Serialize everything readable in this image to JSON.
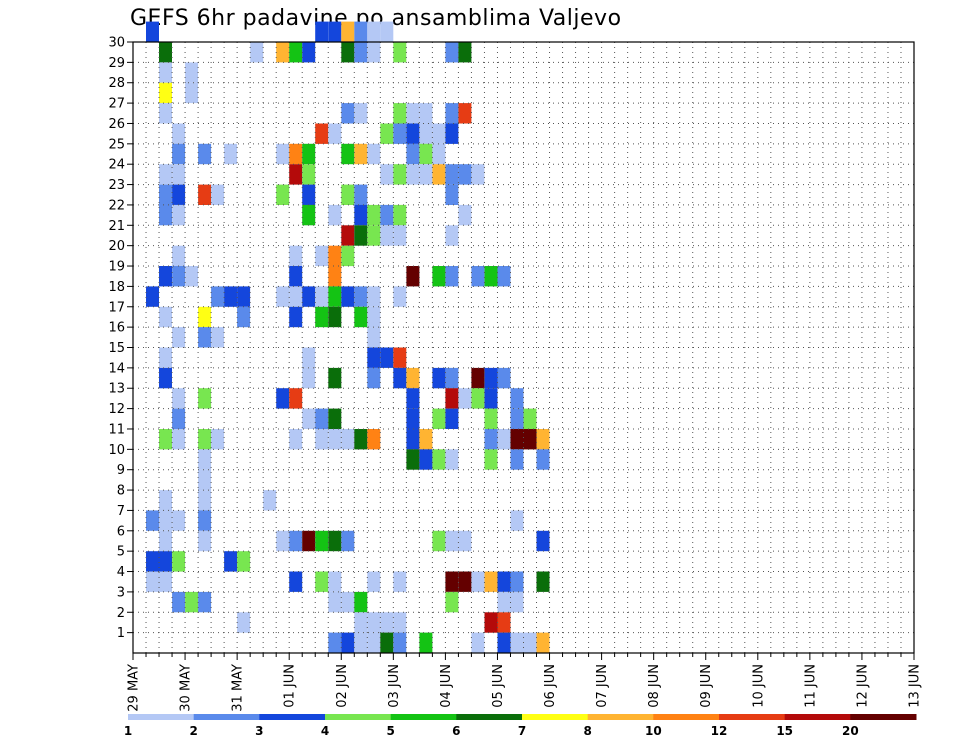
{
  "chart_data": {
    "type": "heatmap",
    "title": "GEFS 6hr padavine po ansamblima Valjevo",
    "xlabel": "",
    "ylabel": "",
    "x_tick_labels": [
      "29 MAY",
      "30 MAY",
      "31 MAY",
      "01 JUN",
      "02 JUN",
      "03 JUN",
      "04 JUN",
      "05 JUN",
      "06 JUN",
      "07 JUN",
      "08 JUN",
      "09 JUN",
      "10 JUN",
      "11 JUN",
      "12 JUN",
      "13 JUN"
    ],
    "y_tick_labels": [
      "1",
      "2",
      "3",
      "4",
      "5",
      "6",
      "7",
      "8",
      "9",
      "10",
      "11",
      "12",
      "13",
      "14",
      "15",
      "16",
      "17",
      "18",
      "19",
      "20",
      "21",
      "22",
      "23",
      "24",
      "25",
      "26",
      "27",
      "28",
      "29",
      "30"
    ],
    "ylim": [
      0,
      30
    ],
    "grid": true,
    "x_step": "6hr",
    "colorbar": {
      "labels": [
        "1",
        "2",
        "3",
        "4",
        "5",
        "6",
        "7",
        "8",
        "10",
        "12",
        "15",
        "20"
      ],
      "colors": [
        "#b4c8f5",
        "#5a8aeb",
        "#1446dc",
        "#78e650",
        "#14c314",
        "#0a6e0a",
        "#ffff14",
        "#ffb432",
        "#ff8214",
        "#e63c14",
        "#b40a0a",
        "#640000"
      ]
    },
    "cells": [
      [
        1,
        30,
        3
      ],
      [
        14,
        30,
        3
      ],
      [
        15,
        30,
        3
      ],
      [
        16,
        30,
        8
      ],
      [
        17,
        30,
        2
      ],
      [
        18,
        30,
        1
      ],
      [
        19,
        30,
        1
      ],
      [
        2,
        29,
        6
      ],
      [
        9,
        29,
        1
      ],
      [
        11,
        29,
        8
      ],
      [
        12,
        29,
        5
      ],
      [
        13,
        29,
        3
      ],
      [
        16,
        29,
        6
      ],
      [
        17,
        29,
        2
      ],
      [
        18,
        29,
        1
      ],
      [
        20,
        29,
        4
      ],
      [
        24,
        29,
        2
      ],
      [
        25,
        29,
        6
      ],
      [
        2,
        28,
        1
      ],
      [
        4,
        28,
        1
      ],
      [
        2,
        27,
        7
      ],
      [
        4,
        27,
        1
      ],
      [
        2,
        26,
        1
      ],
      [
        16,
        26,
        2
      ],
      [
        17,
        26,
        1
      ],
      [
        20,
        26,
        4
      ],
      [
        21,
        26,
        1
      ],
      [
        22,
        26,
        1
      ],
      [
        24,
        26,
        2
      ],
      [
        25,
        26,
        10
      ],
      [
        3,
        25,
        1
      ],
      [
        14,
        25,
        10
      ],
      [
        15,
        25,
        1
      ],
      [
        19,
        25,
        4
      ],
      [
        20,
        25,
        2
      ],
      [
        21,
        25,
        3
      ],
      [
        22,
        25,
        1
      ],
      [
        23,
        25,
        1
      ],
      [
        24,
        25,
        3
      ],
      [
        3,
        24,
        2
      ],
      [
        5,
        24,
        2
      ],
      [
        7,
        24,
        1
      ],
      [
        11,
        24,
        1
      ],
      [
        12,
        24,
        9
      ],
      [
        13,
        24,
        5
      ],
      [
        16,
        24,
        5
      ],
      [
        17,
        24,
        8
      ],
      [
        18,
        24,
        1
      ],
      [
        21,
        24,
        2
      ],
      [
        22,
        24,
        4
      ],
      [
        23,
        24,
        1
      ],
      [
        2,
        23,
        1
      ],
      [
        3,
        23,
        1
      ],
      [
        12,
        23,
        11
      ],
      [
        13,
        23,
        4
      ],
      [
        19,
        23,
        1
      ],
      [
        20,
        23,
        4
      ],
      [
        21,
        23,
        1
      ],
      [
        22,
        23,
        1
      ],
      [
        23,
        23,
        8
      ],
      [
        24,
        23,
        2
      ],
      [
        25,
        23,
        2
      ],
      [
        26,
        23,
        1
      ],
      [
        2,
        22,
        2
      ],
      [
        3,
        22,
        3
      ],
      [
        5,
        22,
        10
      ],
      [
        6,
        22,
        1
      ],
      [
        11,
        22,
        4
      ],
      [
        13,
        22,
        3
      ],
      [
        16,
        22,
        4
      ],
      [
        17,
        22,
        2
      ],
      [
        24,
        22,
        2
      ],
      [
        2,
        21,
        2
      ],
      [
        3,
        21,
        1
      ],
      [
        13,
        21,
        5
      ],
      [
        15,
        21,
        1
      ],
      [
        17,
        21,
        3
      ],
      [
        18,
        21,
        4
      ],
      [
        19,
        21,
        2
      ],
      [
        20,
        21,
        4
      ],
      [
        25,
        21,
        1
      ],
      [
        16,
        20,
        11
      ],
      [
        17,
        20,
        6
      ],
      [
        18,
        20,
        4
      ],
      [
        19,
        20,
        1
      ],
      [
        20,
        20,
        1
      ],
      [
        24,
        20,
        1
      ],
      [
        3,
        19,
        1
      ],
      [
        12,
        19,
        1
      ],
      [
        14,
        19,
        1
      ],
      [
        15,
        19,
        9
      ],
      [
        16,
        19,
        4
      ],
      [
        2,
        18,
        3
      ],
      [
        3,
        18,
        2
      ],
      [
        4,
        18,
        1
      ],
      [
        12,
        18,
        3
      ],
      [
        15,
        18,
        9
      ],
      [
        21,
        18,
        12
      ],
      [
        23,
        18,
        5
      ],
      [
        24,
        18,
        2
      ],
      [
        26,
        18,
        2
      ],
      [
        27,
        18,
        5
      ],
      [
        28,
        18,
        2
      ],
      [
        1,
        17,
        3
      ],
      [
        6,
        17,
        2
      ],
      [
        7,
        17,
        3
      ],
      [
        8,
        17,
        3
      ],
      [
        11,
        17,
        1
      ],
      [
        12,
        17,
        1
      ],
      [
        13,
        17,
        3
      ],
      [
        14,
        17,
        1
      ],
      [
        15,
        17,
        5
      ],
      [
        16,
        17,
        3
      ],
      [
        17,
        17,
        2
      ],
      [
        18,
        17,
        1
      ],
      [
        20,
        17,
        1
      ],
      [
        2,
        16,
        1
      ],
      [
        5,
        16,
        7
      ],
      [
        8,
        16,
        2
      ],
      [
        12,
        16,
        3
      ],
      [
        14,
        16,
        5
      ],
      [
        15,
        16,
        6
      ],
      [
        17,
        16,
        5
      ],
      [
        18,
        16,
        1
      ],
      [
        3,
        15,
        1
      ],
      [
        5,
        15,
        2
      ],
      [
        6,
        15,
        1
      ],
      [
        18,
        15,
        1
      ],
      [
        2,
        14,
        1
      ],
      [
        13,
        14,
        1
      ],
      [
        19,
        14,
        3
      ],
      [
        20,
        14,
        10
      ],
      [
        18,
        14,
        3
      ],
      [
        2,
        13,
        3
      ],
      [
        13,
        13,
        1
      ],
      [
        15,
        13,
        6
      ],
      [
        18,
        13,
        2
      ],
      [
        20,
        13,
        3
      ],
      [
        21,
        13,
        8
      ],
      [
        23,
        13,
        3
      ],
      [
        24,
        13,
        2
      ],
      [
        26,
        13,
        12
      ],
      [
        27,
        13,
        3
      ],
      [
        28,
        13,
        2
      ],
      [
        3,
        12,
        1
      ],
      [
        5,
        12,
        4
      ],
      [
        11,
        12,
        3
      ],
      [
        12,
        12,
        10
      ],
      [
        21,
        12,
        3
      ],
      [
        24,
        12,
        11
      ],
      [
        25,
        12,
        1
      ],
      [
        26,
        12,
        4
      ],
      [
        27,
        12,
        3
      ],
      [
        29,
        12,
        2
      ],
      [
        3,
        11,
        2
      ],
      [
        13,
        11,
        1
      ],
      [
        14,
        11,
        2
      ],
      [
        15,
        11,
        6
      ],
      [
        21,
        11,
        3
      ],
      [
        23,
        11,
        4
      ],
      [
        24,
        11,
        3
      ],
      [
        27,
        11,
        4
      ],
      [
        29,
        11,
        2
      ],
      [
        30,
        11,
        4
      ],
      [
        2,
        10,
        4
      ],
      [
        3,
        10,
        1
      ],
      [
        5,
        10,
        4
      ],
      [
        6,
        10,
        1
      ],
      [
        12,
        10,
        1
      ],
      [
        14,
        10,
        1
      ],
      [
        15,
        10,
        1
      ],
      [
        16,
        10,
        1
      ],
      [
        17,
        10,
        6
      ],
      [
        18,
        10,
        9
      ],
      [
        21,
        10,
        3
      ],
      [
        22,
        10,
        8
      ],
      [
        27,
        10,
        2
      ],
      [
        28,
        10,
        1
      ],
      [
        29,
        10,
        12
      ],
      [
        30,
        10,
        12
      ],
      [
        31,
        10,
        8
      ],
      [
        5,
        9,
        1
      ],
      [
        21,
        9,
        6
      ],
      [
        22,
        9,
        3
      ],
      [
        23,
        9,
        4
      ],
      [
        24,
        9,
        1
      ],
      [
        27,
        9,
        4
      ],
      [
        29,
        9,
        2
      ],
      [
        31,
        9,
        2
      ],
      [
        5,
        8,
        1
      ],
      [
        2,
        7,
        1
      ],
      [
        5,
        7,
        1
      ],
      [
        10,
        7,
        1
      ],
      [
        1,
        6,
        2
      ],
      [
        2,
        6,
        1
      ],
      [
        3,
        6,
        1
      ],
      [
        5,
        6,
        2
      ],
      [
        29,
        6,
        1
      ],
      [
        2,
        5,
        1
      ],
      [
        5,
        5,
        1
      ],
      [
        11,
        5,
        1
      ],
      [
        12,
        5,
        2
      ],
      [
        13,
        5,
        12
      ],
      [
        14,
        5,
        5
      ],
      [
        15,
        5,
        6
      ],
      [
        16,
        5,
        2
      ],
      [
        23,
        5,
        4
      ],
      [
        24,
        5,
        1
      ],
      [
        25,
        5,
        1
      ],
      [
        31,
        5,
        3
      ],
      [
        1,
        4,
        3
      ],
      [
        2,
        4,
        3
      ],
      [
        3,
        4,
        4
      ],
      [
        7,
        4,
        3
      ],
      [
        8,
        4,
        4
      ],
      [
        1,
        3,
        1
      ],
      [
        2,
        3,
        1
      ],
      [
        12,
        3,
        3
      ],
      [
        14,
        3,
        4
      ],
      [
        15,
        3,
        1
      ],
      [
        18,
        3,
        1
      ],
      [
        20,
        3,
        1
      ],
      [
        24,
        3,
        12
      ],
      [
        25,
        3,
        12
      ],
      [
        26,
        3,
        1
      ],
      [
        27,
        3,
        8
      ],
      [
        28,
        3,
        3
      ],
      [
        29,
        3,
        2
      ],
      [
        31,
        3,
        6
      ],
      [
        3,
        2,
        2
      ],
      [
        4,
        2,
        4
      ],
      [
        5,
        2,
        2
      ],
      [
        15,
        2,
        1
      ],
      [
        16,
        2,
        1
      ],
      [
        17,
        2,
        5
      ],
      [
        24,
        2,
        4
      ],
      [
        28,
        2,
        1
      ],
      [
        29,
        2,
        1
      ],
      [
        8,
        1,
        1
      ],
      [
        17,
        1,
        1
      ],
      [
        18,
        1,
        1
      ],
      [
        19,
        1,
        1
      ],
      [
        20,
        1,
        1
      ],
      [
        27,
        1,
        11
      ],
      [
        28,
        1,
        10
      ],
      [
        15,
        0,
        2
      ],
      [
        16,
        0,
        3
      ],
      [
        17,
        0,
        1
      ],
      [
        18,
        0,
        1
      ],
      [
        19,
        0,
        6
      ],
      [
        20,
        0,
        2
      ],
      [
        22,
        0,
        5
      ],
      [
        26,
        0,
        1
      ],
      [
        28,
        0,
        3
      ],
      [
        29,
        0,
        1
      ],
      [
        30,
        0,
        1
      ],
      [
        31,
        0,
        8
      ]
    ]
  }
}
